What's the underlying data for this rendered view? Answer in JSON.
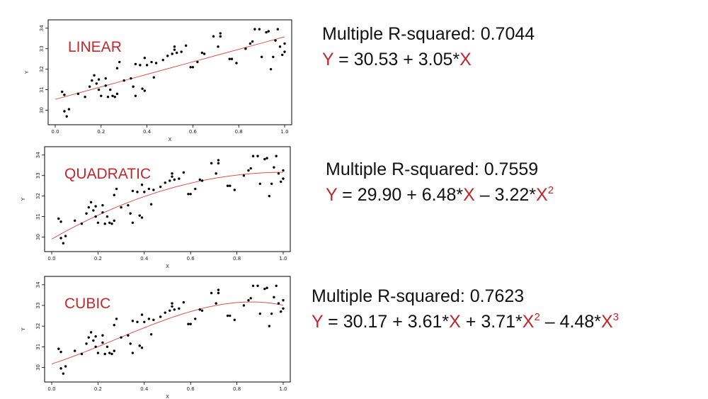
{
  "theme": {
    "accent": "#c0282d",
    "text": "#111111",
    "point": "#000000"
  },
  "chart_data": [
    {
      "type": "scatter",
      "title": "LINEAR",
      "xlabel": "X",
      "ylabel": "Y",
      "xlim": [
        0.0,
        1.0
      ],
      "ylim": [
        29.5,
        34.2
      ],
      "xticks": [
        "0.0",
        "0.2",
        "0.4",
        "0.6",
        "0.8",
        "1.0"
      ],
      "yticks": [
        "30",
        "31",
        "32",
        "33",
        "34"
      ],
      "fit": {
        "coef": [
          30.53,
          3.05
        ],
        "color": "#d9534f"
      },
      "stats": {
        "r2_label": "Multiple R-squared: 0.7044",
        "y": "Y",
        "eq": " =  30.53 + 3.05*",
        "x1": "X"
      }
    },
    {
      "type": "scatter",
      "title": "QUADRATIC",
      "xlabel": "X",
      "ylabel": "Y",
      "xlim": [
        0.0,
        1.0
      ],
      "ylim": [
        29.5,
        34.2
      ],
      "xticks": [
        "0.0",
        "0.2",
        "0.4",
        "0.6",
        "0.8",
        "1.0"
      ],
      "yticks": [
        "30",
        "31",
        "32",
        "33",
        "34"
      ],
      "fit": {
        "coef": [
          29.9,
          6.48,
          -3.22
        ],
        "color": "#d9534f"
      },
      "stats": {
        "r2_label": "Multiple R-squared: 0.7559",
        "y": "Y",
        "eq": " =  29.90 + 6.48*",
        "x1": "X",
        "mid": " – 3.22*",
        "x2": "X",
        "sup2": "2"
      }
    },
    {
      "type": "scatter",
      "title": "CUBIC",
      "xlabel": "X",
      "ylabel": "Y",
      "xlim": [
        0.0,
        1.0
      ],
      "ylim": [
        29.5,
        34.2
      ],
      "xticks": [
        "0.0",
        "0.2",
        "0.4",
        "0.6",
        "0.8",
        "1.0"
      ],
      "yticks": [
        "30",
        "31",
        "32",
        "33",
        "34"
      ],
      "fit": {
        "coef": [
          30.17,
          3.61,
          3.71,
          -4.48
        ],
        "color": "#d9534f"
      },
      "stats": {
        "r2_label": "Multiple R-squared: 0.7623",
        "y": "Y",
        "eq": " =  30.17 + 3.61*",
        "x1": "X",
        "mid": " + 3.71*",
        "x2": "X",
        "sup2": "2",
        "mid2": " – 4.48*",
        "x3": "X",
        "sup3": "3"
      }
    }
  ],
  "points": [
    [
      0.03,
      30.9
    ],
    [
      0.04,
      30.75
    ],
    [
      0.04,
      29.95
    ],
    [
      0.05,
      29.7
    ],
    [
      0.06,
      30.05
    ],
    [
      0.1,
      30.8
    ],
    [
      0.13,
      30.65
    ],
    [
      0.15,
      31.15
    ],
    [
      0.16,
      31.45
    ],
    [
      0.17,
      31.7
    ],
    [
      0.18,
      31.3
    ],
    [
      0.19,
      31.5
    ],
    [
      0.19,
      31.0
    ],
    [
      0.2,
      30.7
    ],
    [
      0.22,
      31.55
    ],
    [
      0.22,
      31.2
    ],
    [
      0.23,
      30.65
    ],
    [
      0.24,
      31.0
    ],
    [
      0.25,
      30.7
    ],
    [
      0.26,
      30.65
    ],
    [
      0.27,
      32.05
    ],
    [
      0.27,
      30.8
    ],
    [
      0.28,
      32.35
    ],
    [
      0.3,
      31.45
    ],
    [
      0.33,
      31.55
    ],
    [
      0.34,
      31.15
    ],
    [
      0.35,
      30.7
    ],
    [
      0.35,
      32.25
    ],
    [
      0.37,
      32.2
    ],
    [
      0.38,
      31.05
    ],
    [
      0.39,
      30.95
    ],
    [
      0.39,
      32.55
    ],
    [
      0.4,
      32.2
    ],
    [
      0.42,
      32.35
    ],
    [
      0.43,
      31.6
    ],
    [
      0.44,
      32.3
    ],
    [
      0.47,
      32.45
    ],
    [
      0.49,
      32.65
    ],
    [
      0.51,
      32.75
    ],
    [
      0.52,
      32.95
    ],
    [
      0.52,
      33.1
    ],
    [
      0.53,
      32.8
    ],
    [
      0.55,
      32.85
    ],
    [
      0.57,
      33.15
    ],
    [
      0.59,
      32.1
    ],
    [
      0.6,
      32.1
    ],
    [
      0.62,
      32.35
    ],
    [
      0.64,
      32.8
    ],
    [
      0.65,
      32.75
    ],
    [
      0.69,
      33.6
    ],
    [
      0.71,
      33.1
    ],
    [
      0.72,
      33.6
    ],
    [
      0.72,
      33.75
    ],
    [
      0.76,
      32.5
    ],
    [
      0.77,
      32.5
    ],
    [
      0.79,
      32.3
    ],
    [
      0.83,
      33.0
    ],
    [
      0.85,
      33.25
    ],
    [
      0.86,
      33.35
    ],
    [
      0.87,
      33.95
    ],
    [
      0.89,
      33.95
    ],
    [
      0.9,
      32.6
    ],
    [
      0.92,
      33.8
    ],
    [
      0.93,
      33.85
    ],
    [
      0.94,
      32.0
    ],
    [
      0.95,
      32.6
    ],
    [
      0.96,
      33.4
    ],
    [
      0.97,
      33.95
    ],
    [
      0.98,
      33.1
    ],
    [
      0.99,
      32.7
    ],
    [
      1.0,
      33.25
    ],
    [
      1.0,
      32.85
    ]
  ]
}
